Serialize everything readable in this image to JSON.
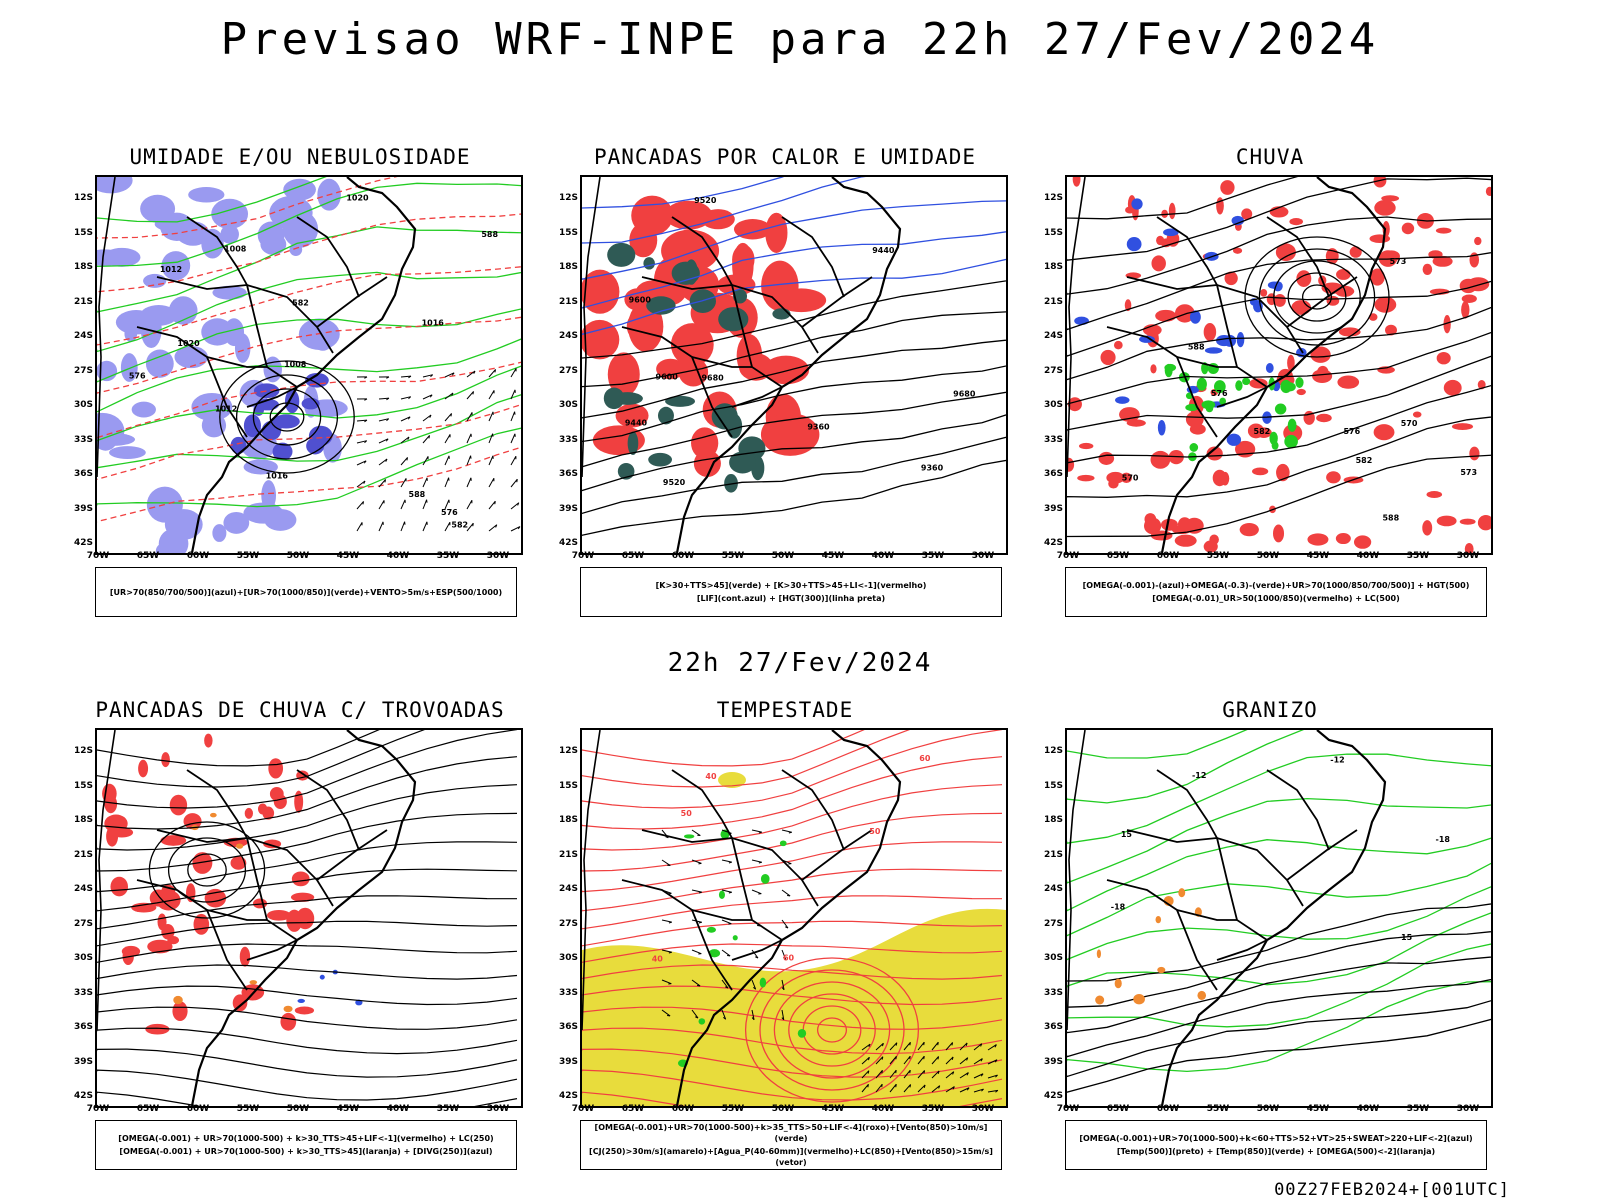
{
  "title": "Previsao WRF-INPE  para 22h 27/Fev/2024",
  "mid_title": "22h 27/Fev/2024",
  "footer": "00Z27FEB2024+[001UTC]",
  "lat_labels": [
    "12S",
    "15S",
    "18S",
    "21S",
    "24S",
    "27S",
    "30S",
    "33S",
    "36S",
    "39S",
    "42S"
  ],
  "lon_labels": [
    "70W",
    "65W",
    "60W",
    "55W",
    "50W",
    "45W",
    "40W",
    "35W",
    "30W"
  ],
  "colors": {
    "red": "#f04040",
    "green": "#22cc22",
    "blue": "#3050e0",
    "lavender": "#9a9af0",
    "darkteal": "#2f5a55",
    "yellow": "#e8dc3c",
    "orange": "#f08a30",
    "black": "#000000"
  },
  "panels": [
    {
      "title": "UMIDADE E/OU NEBULOSIDADE",
      "legend": [
        "[UR>70(850/700/500)](azul)+[UR>70(1000/850)](verde)+VENTO>5m/s+ESP(500/1000)"
      ],
      "contour_labels": [
        "1012",
        "1016",
        "1020",
        "1008",
        "576",
        "582",
        "588"
      ]
    },
    {
      "title": "PANCADAS POR CALOR E UMIDADE",
      "legend": [
        "[K>30+TTS>45](verde) + [K>30+TTS>45+LI<-1](vermelho)",
        "[LIF](cont.azul) + [HGT(300)](linha preta)"
      ],
      "contour_labels": [
        "9680",
        "9600",
        "9520",
        "9440",
        "9360"
      ]
    },
    {
      "title": "CHUVA",
      "legend": [
        "[OMEGA(-0.001)-(azul)+OMEGA(-0.3)-(verde)+UR>70(1000/850/700/500)] + HGT(500)",
        "[OMEGA(-0.01)_UR>50(1000/850)(vermelho) + LC(500)"
      ],
      "contour_labels": [
        "588",
        "582",
        "576",
        "573",
        "570"
      ]
    },
    {
      "title": "PANCADAS DE CHUVA C/ TROVOADAS",
      "legend": [
        "[OMEGA(-0.001) + UR>70(1000-500) + k>30_TTS>45+LIF<-1](vermelho) + LC(250)",
        "[OMEGA(-0.001) + UR>70(1000-500) + k>30_TTS>45](laranja) + [DIVG(250)](azul)"
      ],
      "contour_labels": []
    },
    {
      "title": "TEMPESTADE",
      "legend": [
        "[OMEGA(-0.001)+UR>70(1000-500)+k>35_TTS>50+LIF<-4](roxo)+[Vento(850)>10m/s](verde)",
        "[CJ(250)>30m/s](amarelo)+[Agua_P(40-60mm)](vermelho)+LC(850)+[Vento(850)>15m/s](vetor)"
      ],
      "contour_labels": [
        "40",
        "50",
        "60"
      ]
    },
    {
      "title": "GRANIZO",
      "legend": [
        "[OMEGA(-0.001)+UR>70(1000-500)+k<60+TTS>52+VT>25+SWEAT>220+LIF<-2](azul)",
        "[Temp(500)](preto) + [Temp(850)](verde) + [OMEGA(500)<-2](laranja)"
      ],
      "contour_labels": [
        "-12",
        "-18",
        "15"
      ]
    }
  ]
}
